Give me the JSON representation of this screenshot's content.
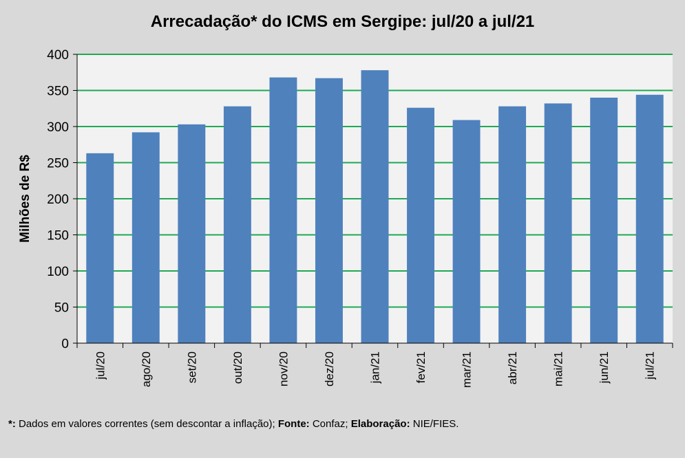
{
  "chart_data": {
    "type": "bar",
    "title": "Arrecadação* do ICMS em Sergipe: jul/20 a jul/21",
    "xlabel": "",
    "ylabel": "Milhões de R$",
    "ylim": [
      0,
      400
    ],
    "yticks": [
      0,
      50,
      100,
      150,
      200,
      250,
      300,
      350,
      400
    ],
    "grid": true,
    "categories": [
      "jul/20",
      "ago/20",
      "set/20",
      "out/20",
      "nov/20",
      "dez/20",
      "jan/21",
      "fev/21",
      "mar/21",
      "abr/21",
      "mai/21",
      "jun/21",
      "jul/21"
    ],
    "values": [
      263,
      292,
      303,
      328,
      368,
      367,
      378,
      326,
      309,
      328,
      332,
      340,
      344
    ],
    "colors": {
      "bar": "#4f81bd",
      "grid": "#1fa855",
      "plot_bg": "#f2f2f2",
      "bg": "#d9d9d9"
    }
  },
  "footnote": {
    "star": "*:",
    "star_text": " Dados em valores correntes (sem descontar a inflação); ",
    "source_label": "Fonte:",
    "source_text": " Confaz; ",
    "elab_label": "Elaboração:",
    "elab_text": " NIE/FIES."
  }
}
